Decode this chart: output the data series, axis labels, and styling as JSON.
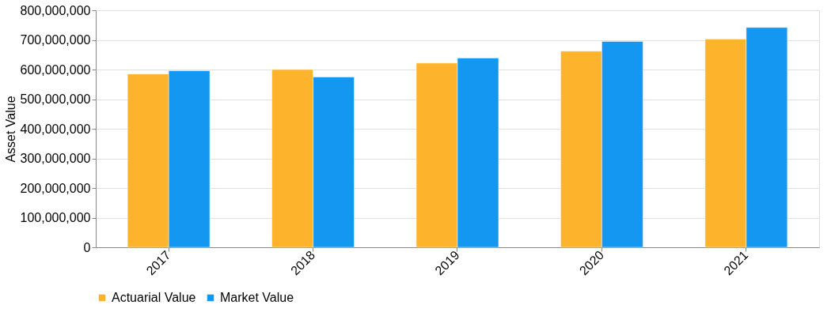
{
  "chart_data": {
    "type": "bar",
    "ylabel": "Asset Value",
    "categories": [
      "2017",
      "2018",
      "2019",
      "2020",
      "2021"
    ],
    "series": [
      {
        "name": "Actuarial Value",
        "color": "#fdb32b",
        "values": [
          585000000,
          600000000,
          622000000,
          662000000,
          703000000
        ]
      },
      {
        "name": "Market Value",
        "color": "#1497f0",
        "values": [
          596000000,
          575000000,
          639000000,
          695000000,
          742000000
        ]
      }
    ],
    "ylim": [
      0,
      800000000
    ],
    "yticks": [
      0,
      {
        "value": 100000000,
        "label": "100,000,000"
      },
      {
        "value": 200000000,
        "label": "200,000,000"
      },
      {
        "value": 300000000,
        "label": "300,000,000"
      },
      {
        "value": 400000000,
        "label": "400,000,000"
      },
      {
        "value": 500000000,
        "label": "500,000,000"
      },
      {
        "value": 600000000,
        "label": "600,000,000"
      },
      {
        "value": 700000000,
        "label": "700,000,000"
      },
      {
        "value": 800000000,
        "label": "800,000,000"
      }
    ],
    "grid": "y",
    "legend": "bottom"
  }
}
